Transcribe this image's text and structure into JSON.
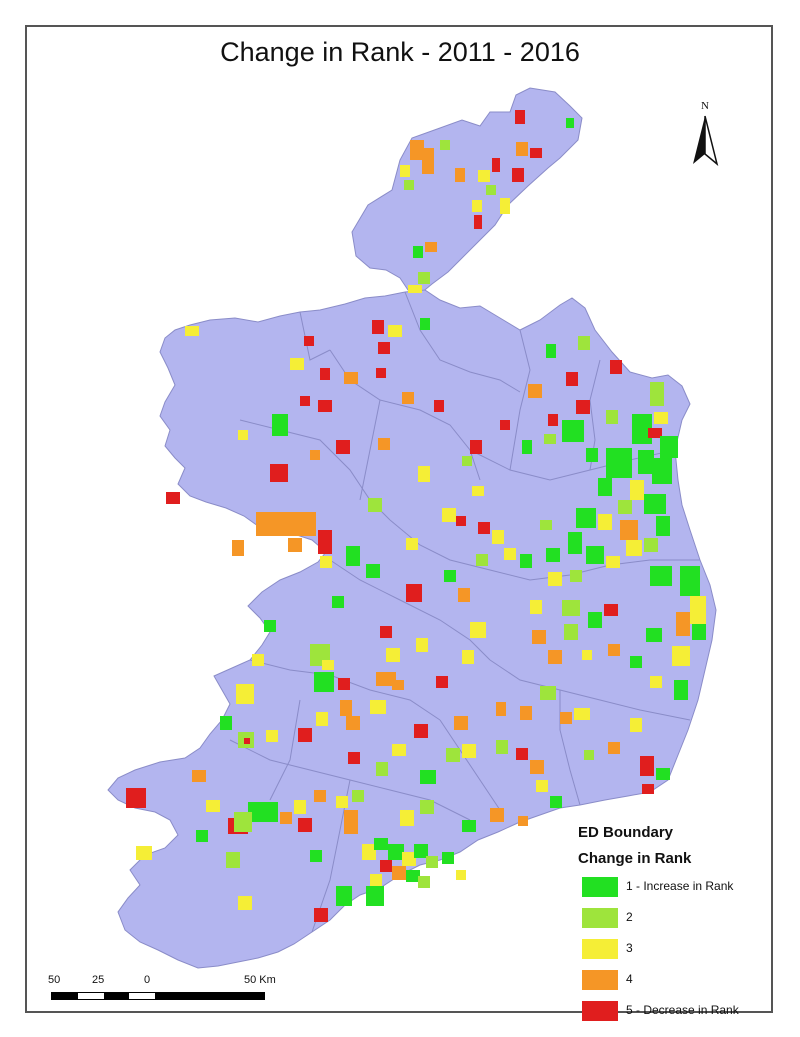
{
  "title": "Change in Rank - 2011 - 2016",
  "north_arrow": {
    "label": "N"
  },
  "legend": {
    "heading1": "ED Boundary",
    "heading2": "Change in Rank",
    "items": [
      {
        "label": "1 - Increase in Rank",
        "color": "#22e022"
      },
      {
        "label": "2",
        "color": "#9ee43c"
      },
      {
        "label": "3",
        "color": "#f5ee36"
      },
      {
        "label": "4",
        "color": "#f59626"
      },
      {
        "label": "5 - Decrease in Rank",
        "color": "#e01e1e"
      }
    ]
  },
  "scale_bar": {
    "labels": [
      "50",
      "25",
      "0",
      "50 Km"
    ]
  },
  "colors": {
    "land": "#b3b5ef",
    "boundary": "#8a8cc8",
    "background": "#ffffff"
  }
}
